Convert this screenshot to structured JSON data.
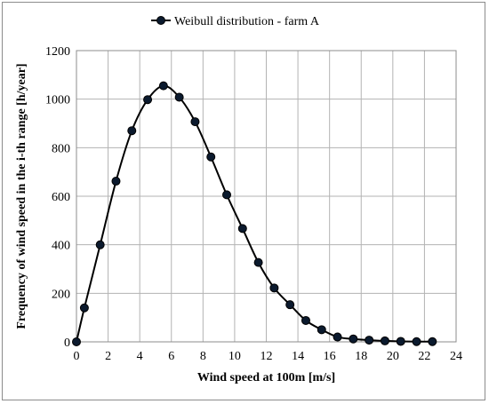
{
  "chart_data": {
    "type": "line",
    "xlabel": "Wind speed at 100m [m/s]",
    "ylabel": "Frequency of wind speed in the i-th range [h/year]",
    "xlim": [
      0,
      24
    ],
    "ylim": [
      0,
      1200
    ],
    "xticks": [
      0,
      2,
      4,
      6,
      8,
      10,
      12,
      14,
      16,
      18,
      20,
      22,
      24
    ],
    "yticks": [
      0,
      200,
      400,
      600,
      800,
      1000,
      1200
    ],
    "grid": true,
    "legend_position": "top-center",
    "series": [
      {
        "name": "Weibull distribution - farm A",
        "color": "#000000",
        "marker_color": "#0b1a2e",
        "x": [
          0,
          0.5,
          1.5,
          2.5,
          3.5,
          4.5,
          5.5,
          6.5,
          7.5,
          8.5,
          9.5,
          10.5,
          11.5,
          12.5,
          13.5,
          14.5,
          15.5,
          16.5,
          17.5,
          18.5,
          19.5,
          20.5,
          21.5,
          22.5
        ],
        "y": [
          0,
          140,
          400,
          662,
          870,
          998,
          1055,
          1008,
          907,
          762,
          606,
          467,
          327,
          222,
          153,
          88,
          50,
          20,
          12,
          7,
          4,
          2,
          1,
          1
        ]
      }
    ]
  }
}
